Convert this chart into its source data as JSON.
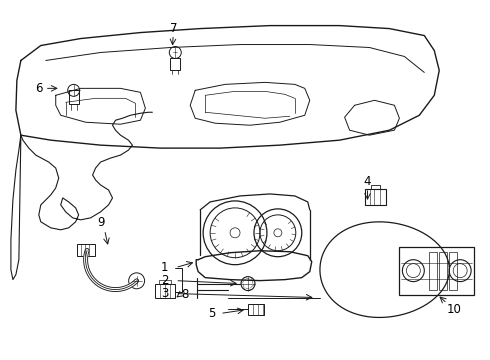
{
  "bg_color": "#ffffff",
  "line_color": "#1a1a1a",
  "text_color": "#000000",
  "fig_width": 4.9,
  "fig_height": 3.6,
  "dpi": 100
}
